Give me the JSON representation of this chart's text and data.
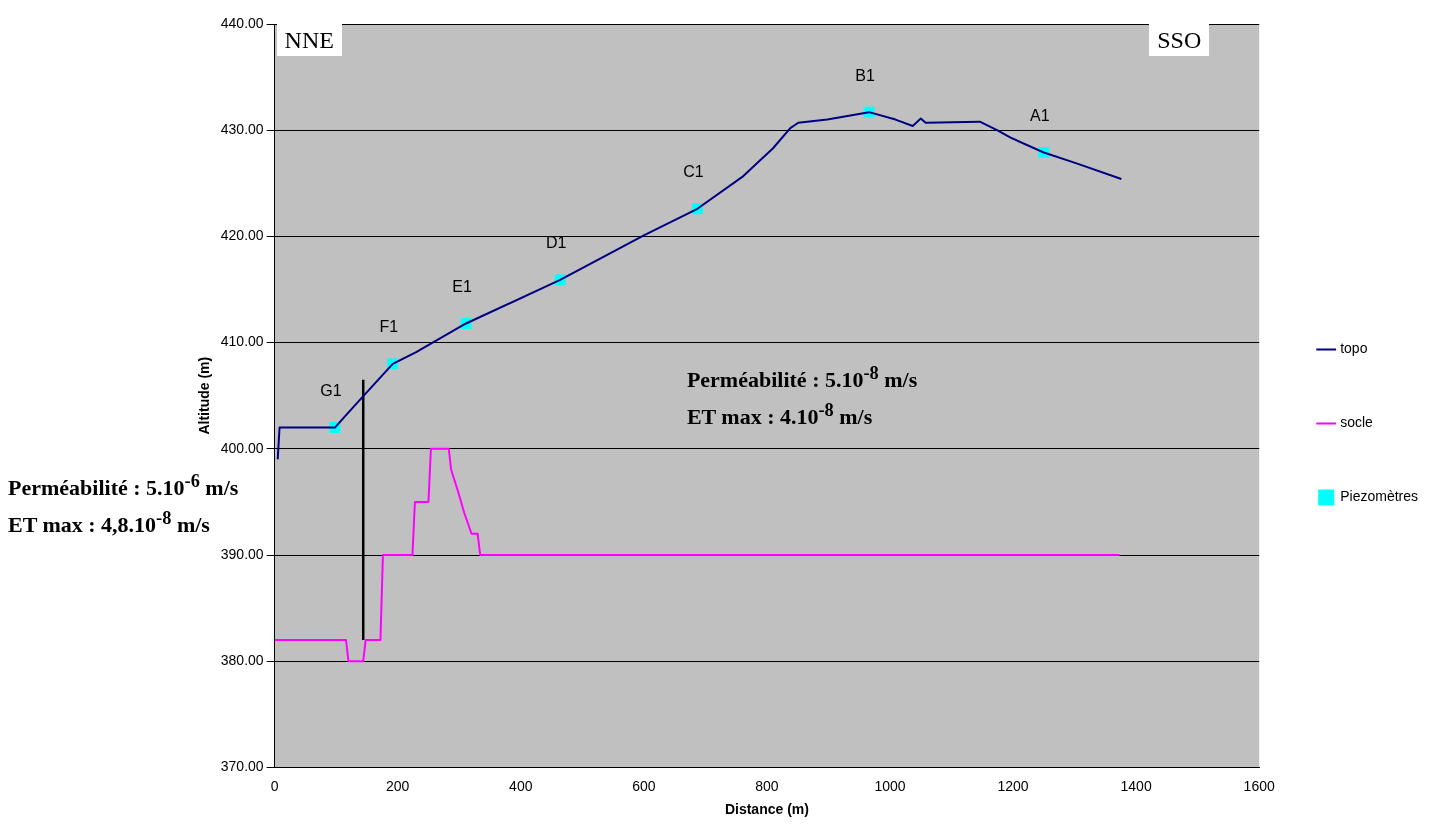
{
  "chart_data": {
    "type": "line",
    "xlabel": "Distance (m)",
    "ylabel": "Altitude (m)",
    "xlim": [
      0,
      1600
    ],
    "xticks": [
      0,
      200,
      400,
      600,
      800,
      1000,
      1200,
      1400,
      1600
    ],
    "ylim": [
      370,
      440
    ],
    "yticks": [
      {
        "value": 370,
        "label": "370.00"
      },
      {
        "value": 380,
        "label": "380.00"
      },
      {
        "value": 390,
        "label": "390.00"
      },
      {
        "value": 400,
        "label": "400.00"
      },
      {
        "value": 410,
        "label": "410.00"
      },
      {
        "value": 420,
        "label": "420.00"
      },
      {
        "value": 430,
        "label": "430.00"
      },
      {
        "value": 440,
        "label": "440.00"
      }
    ],
    "grid": "y",
    "legend": "right",
    "series": [
      {
        "name": "topo",
        "type": "line",
        "color": "#000080",
        "marker": "none",
        "x": [
          5,
          8,
          98,
          115,
          140,
          192,
          230,
          311,
          464,
          600,
          687,
          760,
          810,
          838,
          851,
          898,
          966,
          1009,
          1037,
          1050,
          1058,
          1146,
          1174,
          1196,
          1250,
          1302,
          1376
        ],
        "values": [
          399,
          402,
          402,
          403.1,
          404.7,
          408,
          409.1,
          411.8,
          415.9,
          420.1,
          422.6,
          425.6,
          428.3,
          430.2,
          430.7,
          431,
          431.7,
          431,
          430.4,
          431.1,
          430.7,
          430.8,
          430,
          429.3,
          427.9,
          426.9,
          425.4
        ]
      },
      {
        "name": "socle",
        "type": "line",
        "color": "#ff00ff",
        "marker": "none",
        "x": [
          0,
          116,
          120,
          144,
          148,
          172,
          176,
          224,
          228,
          250,
          254,
          283,
          287,
          298,
          308,
          320,
          330,
          334,
          1373
        ],
        "values": [
          382,
          382,
          380,
          380,
          382,
          382,
          390,
          390,
          395,
          395,
          400,
          400,
          398,
          396,
          394,
          392,
          392,
          390,
          390
        ]
      },
      {
        "name": "Piezomètres",
        "type": "scatter",
        "color": "#00ffff",
        "marker": "square",
        "x": [
          98,
          192,
          311,
          464,
          687,
          966,
          1250
        ],
        "values": [
          402,
          408,
          411.8,
          415.9,
          422.6,
          431.7,
          427.9
        ]
      },
      {
        "type": "line",
        "color": "#000000",
        "marker": "none",
        "x": [
          144,
          144
        ],
        "values": [
          382,
          406.5
        ]
      }
    ],
    "annotations": [
      "NNE",
      "SSO",
      "Perméabilité : 5.10$^{-6}$ m/s",
      "ET max : 4,8.10$^{-8}$ m/s",
      "Perméabilité : 5.10$^{-8}$ m/s",
      "ET max : 4.10$^{-8}$ m/s",
      {
        "text": "G1",
        "x": 98,
        "y": 402
      },
      {
        "text": "F1",
        "x": 192,
        "y": 408
      },
      {
        "text": "E1",
        "x": 311,
        "y": 411.8
      },
      {
        "text": "D1",
        "x": 464,
        "y": 415.9
      },
      {
        "text": "C1",
        "x": 687,
        "y": 422.6
      },
      {
        "text": "B1",
        "x": 966,
        "y": 431.7
      },
      {
        "text": "A1",
        "x": 1250,
        "y": 427.9
      }
    ]
  }
}
